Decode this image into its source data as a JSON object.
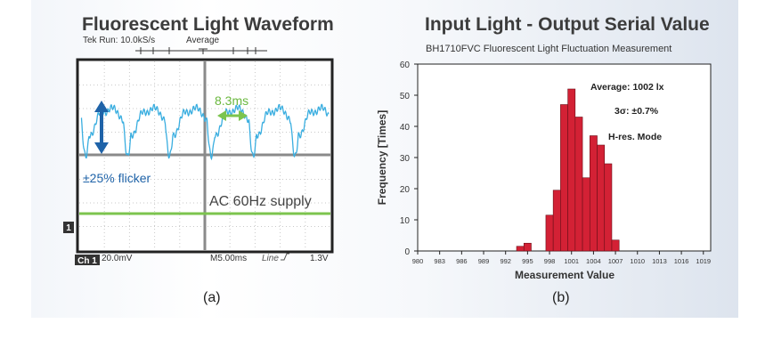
{
  "scope": {
    "title": "Fluorescent Light Waveform",
    "header_run": "Tek Run: 10.0kS/s",
    "header_mode": "Average",
    "flicker_label": "±25% flicker",
    "period_label": "8.3ms",
    "supply_label": "AC 60Hz supply",
    "channel_marker": "1",
    "ch_badge": "Ch 1",
    "volts_div": "20.0mV",
    "timebase": "M5.00ms",
    "trigger_source": "Line",
    "trigger_level": "1.3V",
    "caption": "(a)",
    "colors": {
      "signal": "#3aaee0",
      "supply": "#7cc44e",
      "flicker_arrow": "#1f63a8",
      "period_arrow": "#7cc44e"
    }
  },
  "chart_data": {
    "type": "bar",
    "title": "Input Light  - Output Serial Value",
    "subtitle": "BH1710FVC Fluorescent Light Fluctuation Measurement",
    "xlabel": "Measurement Value",
    "ylabel": "Frequency [Times]",
    "ylim": [
      0,
      60
    ],
    "y_ticks": [
      0,
      10,
      20,
      30,
      40,
      50,
      60
    ],
    "x_ticks": [
      "980",
      "983",
      "986",
      "989",
      "992",
      "995",
      "998",
      "1001",
      "1004",
      "1007",
      "1010",
      "1013",
      "1016",
      "1019"
    ],
    "x_range": [
      980,
      1020
    ],
    "bins": [
      994,
      995,
      996,
      997,
      998,
      999,
      1000,
      1001,
      1002,
      1003,
      1004,
      1005,
      1006,
      1007
    ],
    "values": [
      1.5,
      2.5,
      0,
      0,
      11.5,
      19.5,
      47,
      52,
      43,
      23.5,
      37,
      34,
      28,
      3.5
    ],
    "bar_color": "#d32135",
    "annotations": [
      "Average: 1002 lx",
      "3σ: ±0.7%",
      "H-res. Mode"
    ],
    "caption": "(b)"
  }
}
